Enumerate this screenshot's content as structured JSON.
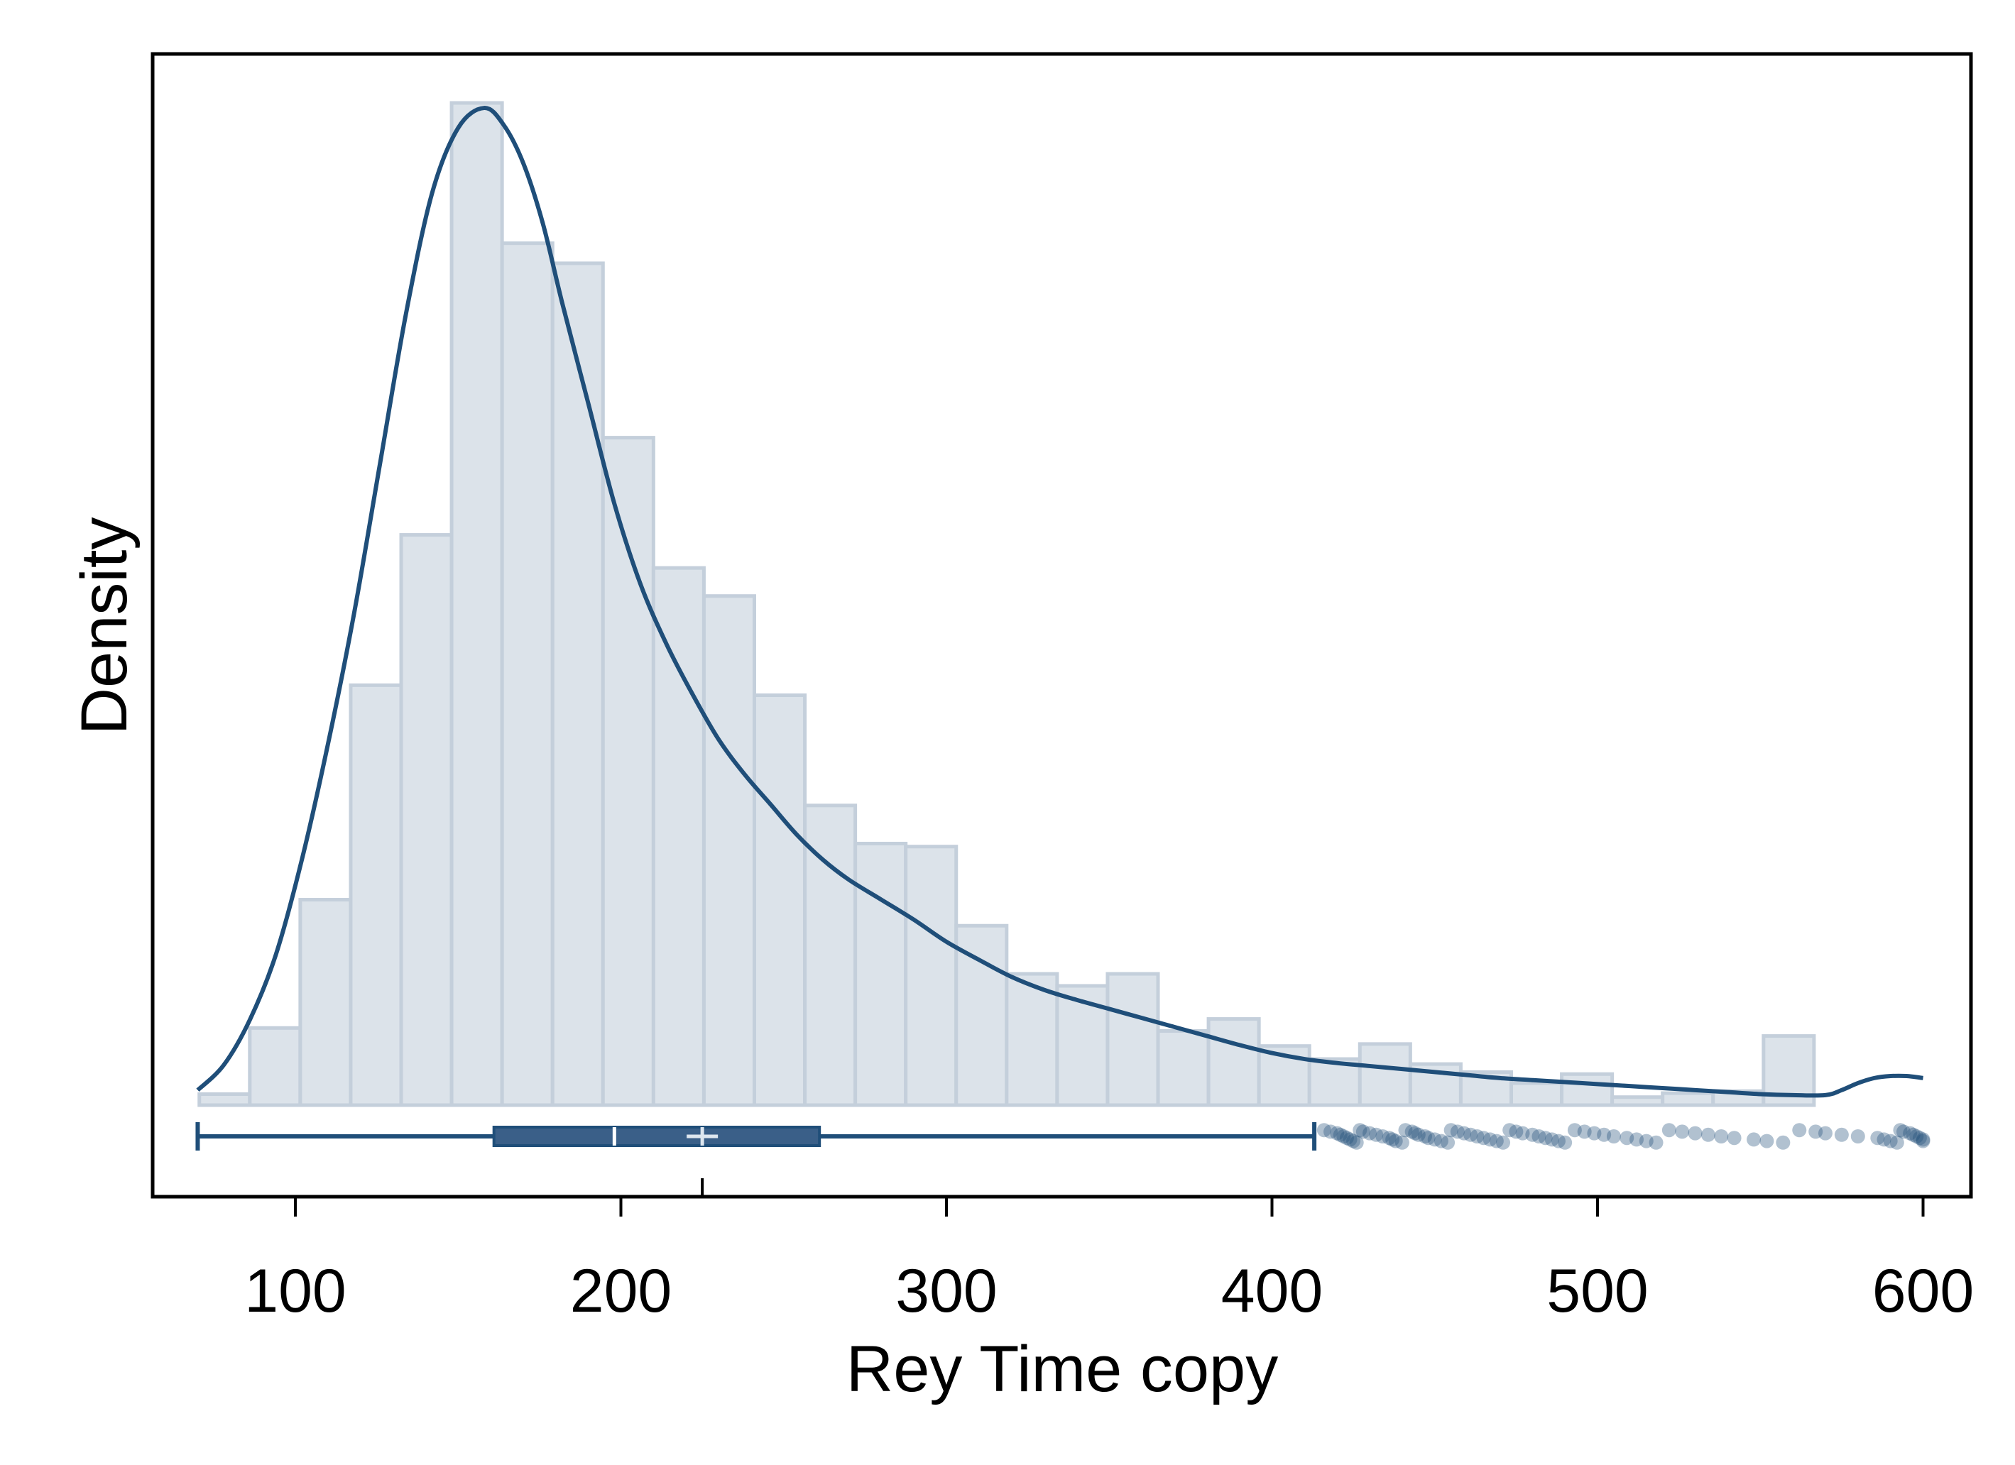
{
  "chart_data": {
    "type": "histogram",
    "xlabel": "Rey Time copy",
    "ylabel": "Density",
    "xlim": [
      56,
      610
    ],
    "xticks": [
      100,
      200,
      300,
      400,
      500,
      600
    ],
    "bins": {
      "start": 70.5,
      "width": 15.5,
      "relative_heights": [
        0.011,
        0.077,
        0.205,
        0.419,
        0.569,
        1.0,
        0.86,
        0.84,
        0.666,
        0.536,
        0.508,
        0.409,
        0.299,
        0.261,
        0.258,
        0.179,
        0.131,
        0.119,
        0.131,
        0.074,
        0.086,
        0.059,
        0.046,
        0.061,
        0.041,
        0.033,
        0.022,
        0.031,
        0.008,
        0.012,
        0.014,
        0.069
      ]
    },
    "density_curve": {
      "x": [
        70,
        78,
        86,
        94,
        102,
        110,
        118,
        126,
        134,
        142,
        150,
        158,
        164,
        170,
        176,
        182,
        190,
        198,
        206,
        214,
        222,
        230,
        238,
        246,
        254,
        262,
        270,
        280,
        290,
        300,
        310,
        320,
        330,
        340,
        350,
        360,
        370,
        380,
        390,
        400,
        410,
        420,
        430,
        440,
        450,
        460,
        470,
        480,
        490,
        500,
        510,
        520,
        530,
        540,
        550,
        560,
        570,
        575,
        580,
        585,
        590,
        595,
        600
      ],
      "relative_density": [
        0.015,
        0.04,
        0.085,
        0.15,
        0.245,
        0.36,
        0.49,
        0.64,
        0.79,
        0.91,
        0.975,
        0.995,
        0.978,
        0.94,
        0.88,
        0.8,
        0.7,
        0.6,
        0.52,
        0.46,
        0.41,
        0.365,
        0.33,
        0.3,
        0.27,
        0.245,
        0.225,
        0.205,
        0.185,
        0.163,
        0.145,
        0.128,
        0.115,
        0.105,
        0.096,
        0.087,
        0.078,
        0.069,
        0.06,
        0.052,
        0.046,
        0.042,
        0.039,
        0.036,
        0.033,
        0.03,
        0.027,
        0.025,
        0.023,
        0.021,
        0.019,
        0.017,
        0.015,
        0.013,
        0.011,
        0.01,
        0.01,
        0.015,
        0.022,
        0.027,
        0.029,
        0.029,
        0.027
      ]
    },
    "boxplot": {
      "whisker_low": 70,
      "q1": 161,
      "median": 198,
      "mean": 225,
      "q3": 261,
      "whisker_high": 413,
      "outliers": [
        416,
        418,
        420,
        421,
        422,
        423,
        424,
        425,
        426,
        427,
        428,
        430,
        432,
        434,
        436,
        437,
        438,
        440,
        441,
        443,
        444,
        445,
        447,
        448,
        450,
        452,
        454,
        455,
        457,
        459,
        461,
        463,
        465,
        467,
        469,
        471,
        473,
        475,
        477,
        480,
        482,
        484,
        486,
        488,
        490,
        493,
        496,
        499,
        502,
        505,
        509,
        512,
        515,
        518,
        522,
        526,
        530,
        534,
        538,
        542,
        548,
        552,
        557,
        562,
        567,
        570,
        575,
        580,
        586,
        588,
        590,
        592,
        593,
        594,
        596,
        597,
        598,
        599,
        600,
        600
      ]
    },
    "colors": {
      "bar_fill": "#dce3ea",
      "bar_stroke": "#c4cfdb",
      "line": "#1f4e79",
      "box_fill": "#3a5f88",
      "frame": "#000000"
    },
    "grid": false,
    "legend": "none"
  }
}
